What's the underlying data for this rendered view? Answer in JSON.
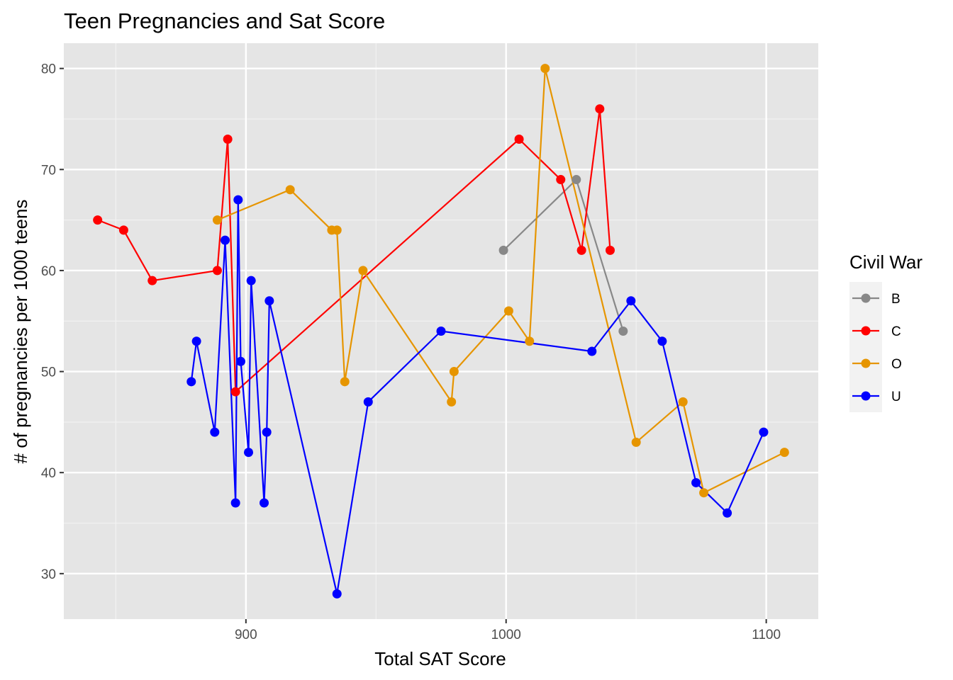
{
  "chart_data": {
    "type": "line",
    "title": "Teen Pregnancies and Sat Score",
    "xlabel": "Total SAT Score",
    "ylabel": "# of pregnancies per 1000 teens",
    "xlim": [
      830,
      1120
    ],
    "ylim": [
      25.5,
      82.5
    ],
    "xticks": [
      900,
      1000,
      1100
    ],
    "yticks": [
      30,
      40,
      50,
      60,
      70,
      80
    ],
    "grid": true,
    "background": "#e5e5e5",
    "legend": {
      "title": "Civil War",
      "placement": "right"
    },
    "series": [
      {
        "name": "B",
        "color": "#888888",
        "points": [
          [
            999,
            62
          ],
          [
            1027,
            69
          ],
          [
            1045,
            54
          ]
        ]
      },
      {
        "name": "C",
        "color": "#ff0000",
        "points": [
          [
            843,
            65
          ],
          [
            853,
            64
          ],
          [
            864,
            59
          ],
          [
            889,
            60
          ],
          [
            893,
            73
          ],
          [
            896,
            48
          ],
          [
            1005,
            73
          ],
          [
            1021,
            69
          ],
          [
            1029,
            62
          ],
          [
            1036,
            76
          ],
          [
            1040,
            62
          ]
        ]
      },
      {
        "name": "O",
        "color": "#e69500",
        "points": [
          [
            889,
            65
          ],
          [
            917,
            68
          ],
          [
            933,
            64
          ],
          [
            935,
            64
          ],
          [
            938,
            49
          ],
          [
            945,
            60
          ],
          [
            979,
            47
          ],
          [
            980,
            50
          ],
          [
            1001,
            56
          ],
          [
            1009,
            53
          ],
          [
            1015,
            80
          ],
          [
            1050,
            43
          ],
          [
            1068,
            47
          ],
          [
            1076,
            38
          ],
          [
            1107,
            42
          ]
        ]
      },
      {
        "name": "U",
        "color": "#0000ff",
        "points": [
          [
            879,
            49
          ],
          [
            881,
            53
          ],
          [
            888,
            44
          ],
          [
            892,
            63
          ],
          [
            896,
            37
          ],
          [
            897,
            67
          ],
          [
            898,
            51
          ],
          [
            901,
            42
          ],
          [
            902,
            59
          ],
          [
            907,
            37
          ],
          [
            908,
            44
          ],
          [
            909,
            57
          ],
          [
            935,
            28
          ],
          [
            947,
            47
          ],
          [
            975,
            54
          ],
          [
            1033,
            52
          ],
          [
            1048,
            57
          ],
          [
            1060,
            53
          ],
          [
            1073,
            39
          ],
          [
            1085,
            36
          ],
          [
            1099,
            44
          ]
        ]
      }
    ]
  }
}
